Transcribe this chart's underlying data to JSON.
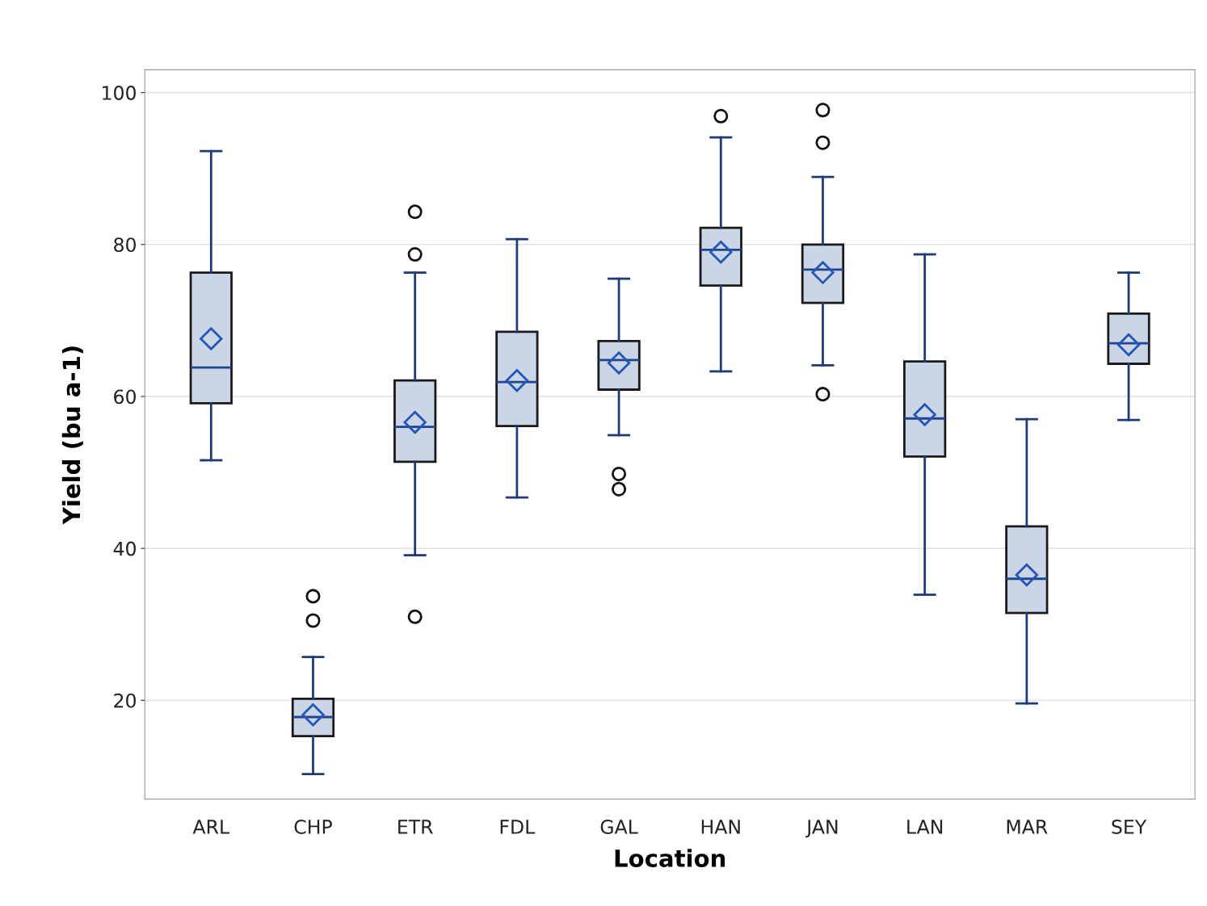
{
  "chart_data": {
    "type": "box",
    "xlabel": "Location",
    "ylabel": "Yield (bu a-1)",
    "categories": [
      "ARL",
      "CHP",
      "ETR",
      "FDL",
      "GAL",
      "HAN",
      "JAN",
      "LAN",
      "MAR",
      "SEY"
    ],
    "boxes": [
      {
        "low": 51.6,
        "q1": 59.1,
        "median": 63.8,
        "q3": 76.3,
        "high": 92.3,
        "mean": 67.6
      },
      {
        "low": 10.3,
        "q1": 15.3,
        "median": 17.8,
        "q3": 20.2,
        "high": 25.7,
        "mean": 18.1,
        "outliers": [
          33.7,
          30.5
        ]
      },
      {
        "low": 39.1,
        "q1": 51.4,
        "median": 56.0,
        "q3": 62.1,
        "high": 76.3,
        "mean": 56.6,
        "outliers": [
          84.3,
          78.7,
          31.0
        ]
      },
      {
        "low": 46.7,
        "q1": 56.1,
        "median": 61.9,
        "q3": 68.5,
        "high": 80.7,
        "mean": 62.1
      },
      {
        "low": 54.9,
        "q1": 60.9,
        "median": 64.8,
        "q3": 67.3,
        "high": 75.5,
        "mean": 64.4,
        "outliers": [
          49.8,
          47.8
        ]
      },
      {
        "low": 63.3,
        "q1": 74.6,
        "median": 79.3,
        "q3": 82.2,
        "high": 94.1,
        "mean": 79.0,
        "outliers": [
          96.9
        ]
      },
      {
        "low": 64.1,
        "q1": 72.3,
        "median": 76.7,
        "q3": 80.0,
        "high": 88.9,
        "mean": 76.3,
        "outliers": [
          97.7,
          93.4,
          60.3
        ]
      },
      {
        "low": 33.9,
        "q1": 52.1,
        "median": 57.1,
        "q3": 64.6,
        "high": 78.7,
        "mean": 57.6
      },
      {
        "low": 19.6,
        "q1": 31.5,
        "median": 36.0,
        "q3": 42.9,
        "high": 57.0,
        "mean": 36.5
      },
      {
        "low": 56.9,
        "q1": 64.3,
        "median": 67.0,
        "q3": 70.9,
        "high": 76.3,
        "mean": 66.8
      }
    ],
    "color": "#cad5e5",
    "ylim": [
      7,
      103
    ],
    "yticks": [
      20,
      40,
      60,
      80,
      100
    ],
    "grid": "y",
    "legend": false
  }
}
